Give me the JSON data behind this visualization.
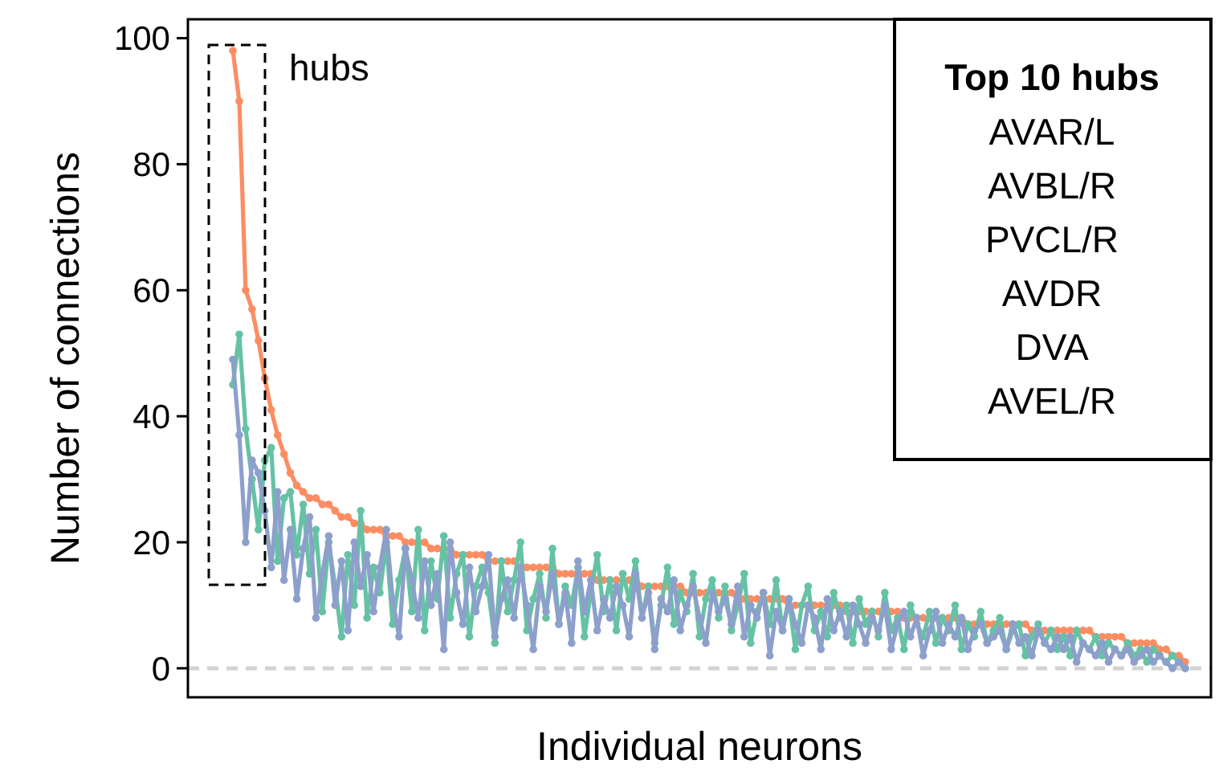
{
  "chart_data": {
    "type": "line",
    "xlabel": "Individual neurons",
    "ylabel": "Number of connections",
    "categories": [
      null,
      null,
      null,
      null,
      null,
      null,
      null,
      null,
      null,
      null,
      null,
      null,
      null,
      null,
      null,
      null,
      null,
      null,
      null,
      null,
      null,
      null,
      null,
      null,
      null,
      null,
      null,
      null,
      null,
      null,
      null,
      null,
      null,
      null,
      null,
      null,
      null,
      null,
      null,
      null,
      null,
      null,
      null,
      null,
      null,
      null,
      null,
      null,
      null,
      null,
      null,
      null,
      null,
      null,
      null,
      null,
      null,
      null,
      null,
      null,
      null,
      null,
      null,
      null,
      null,
      null,
      null,
      null,
      null,
      null,
      null,
      null,
      null,
      null,
      null,
      null,
      null,
      null,
      null,
      null,
      null,
      null,
      null,
      null,
      null,
      null,
      null,
      null,
      null,
      null,
      null,
      null,
      null,
      null,
      null,
      null,
      null,
      null,
      null,
      null,
      null,
      null,
      null,
      null,
      null,
      null,
      null,
      null,
      null,
      null,
      null,
      null,
      null,
      null,
      null,
      null,
      null,
      null,
      null,
      null,
      null,
      null,
      null,
      null,
      null,
      null,
      null,
      null,
      null,
      null,
      null,
      null,
      null,
      null,
      null,
      null,
      null,
      null,
      null,
      null,
      null,
      null,
      null,
      null,
      null,
      null,
      null,
      null,
      null,
      null
    ],
    "series": [
      {
        "color": "#fc8d62",
        "values": [
          98,
          90,
          60,
          57,
          52,
          46,
          41,
          37,
          34,
          31,
          29,
          28,
          27,
          27,
          26,
          26,
          25,
          24,
          24,
          23,
          23,
          22,
          22,
          22,
          21,
          21,
          21,
          20,
          20,
          20,
          20,
          19,
          19,
          19,
          19,
          18,
          18,
          18,
          18,
          18,
          17,
          17,
          17,
          17,
          17,
          16,
          16,
          16,
          16,
          16,
          16,
          15,
          15,
          15,
          15,
          15,
          15,
          14,
          14,
          14,
          14,
          14,
          14,
          14,
          13,
          13,
          13,
          13,
          13,
          13,
          13,
          12,
          12,
          12,
          12,
          12,
          12,
          12,
          12,
          11,
          11,
          11,
          11,
          11,
          11,
          11,
          11,
          10,
          10,
          10,
          10,
          10,
          10,
          10,
          10,
          10,
          9,
          9,
          9,
          9,
          9,
          9,
          9,
          9,
          9,
          8,
          8,
          8,
          8,
          8,
          8,
          8,
          8,
          8,
          8,
          7,
          7,
          7,
          7,
          7,
          7,
          7,
          7,
          7,
          7,
          6,
          6,
          6,
          6,
          6,
          6,
          6,
          6,
          6,
          6,
          5,
          5,
          5,
          5,
          5,
          4,
          4,
          4,
          4,
          4,
          3,
          3,
          2,
          2,
          1
        ]
      },
      {
        "color": "#66c2a5",
        "values": [
          45,
          53,
          38,
          30,
          22,
          33,
          35,
          17,
          27,
          28,
          18,
          26,
          15,
          22,
          9,
          20,
          13,
          5,
          18,
          10,
          25,
          8,
          16,
          12,
          20,
          7,
          14,
          19,
          9,
          22,
          6,
          17,
          11,
          21,
          8,
          15,
          18,
          5,
          13,
          16,
          12,
          4,
          17,
          9,
          14,
          20,
          6,
          11,
          15,
          8,
          19,
          7,
          13,
          10,
          16,
          5,
          12,
          18,
          9,
          14,
          6,
          15,
          11,
          17,
          8,
          13,
          4,
          10,
          16,
          7,
          12,
          9,
          15,
          5,
          11,
          14,
          8,
          13,
          6,
          10,
          15,
          4,
          9,
          12,
          7,
          14,
          6,
          11,
          3,
          10,
          13,
          6,
          9,
          5,
          12,
          8,
          10,
          4,
          11,
          7,
          9,
          5,
          12,
          6,
          8,
          3,
          10,
          7,
          5,
          9,
          4,
          8,
          6,
          10,
          3,
          7,
          5,
          9,
          4,
          6,
          8,
          3,
          6,
          7,
          2,
          5,
          7,
          4,
          6,
          3,
          5,
          2,
          6,
          4,
          3,
          5,
          2,
          4,
          3,
          2,
          4,
          2,
          3,
          1,
          3,
          2,
          1,
          2,
          1,
          0
        ]
      },
      {
        "color": "#8da0cb",
        "values": [
          49,
          37,
          20,
          33,
          31,
          25,
          16,
          28,
          14,
          22,
          11,
          19,
          24,
          8,
          15,
          21,
          10,
          17,
          6,
          20,
          13,
          18,
          9,
          16,
          22,
          11,
          5,
          19,
          14,
          8,
          17,
          10,
          15,
          3,
          20,
          12,
          7,
          16,
          9,
          13,
          18,
          5,
          11,
          14,
          8,
          16,
          10,
          3,
          13,
          9,
          15,
          7,
          12,
          4,
          17,
          9,
          14,
          6,
          11,
          8,
          13,
          10,
          5,
          15,
          8,
          12,
          3,
          11,
          9,
          14,
          6,
          10,
          13,
          8,
          4,
          12,
          9,
          11,
          7,
          13,
          5,
          10,
          8,
          12,
          2,
          9,
          6,
          11,
          7,
          4,
          10,
          8,
          3,
          11,
          6,
          9,
          5,
          10,
          7,
          4,
          8,
          6,
          10,
          3,
          7,
          9,
          5,
          8,
          2,
          6,
          9,
          4,
          7,
          5,
          8,
          3,
          6,
          7,
          4,
          5,
          6,
          3,
          7,
          4,
          5,
          2,
          6,
          4,
          3,
          5,
          3,
          5,
          1,
          4,
          3,
          2,
          4,
          1,
          3,
          2,
          3,
          1,
          2,
          3,
          1,
          2,
          1,
          0,
          1,
          0
        ]
      }
    ],
    "ylim": [
      -4.6,
      103
    ],
    "yticks": [
      0,
      20,
      40,
      60,
      80,
      100
    ],
    "tick_labels": "y",
    "grid": false,
    "marker": "circle",
    "line_style": "solid",
    "ref_lines": [
      {
        "axis": "y",
        "value": 0,
        "color": "#d3d3d3",
        "line_style": "dashed"
      }
    ],
    "annotations": [
      "hubs",
      "Top 10 hubs",
      "AVAR/L",
      "AVBL/R",
      "PVCL/R",
      "AVDR",
      "DVA",
      "AVEL/R"
    ]
  }
}
